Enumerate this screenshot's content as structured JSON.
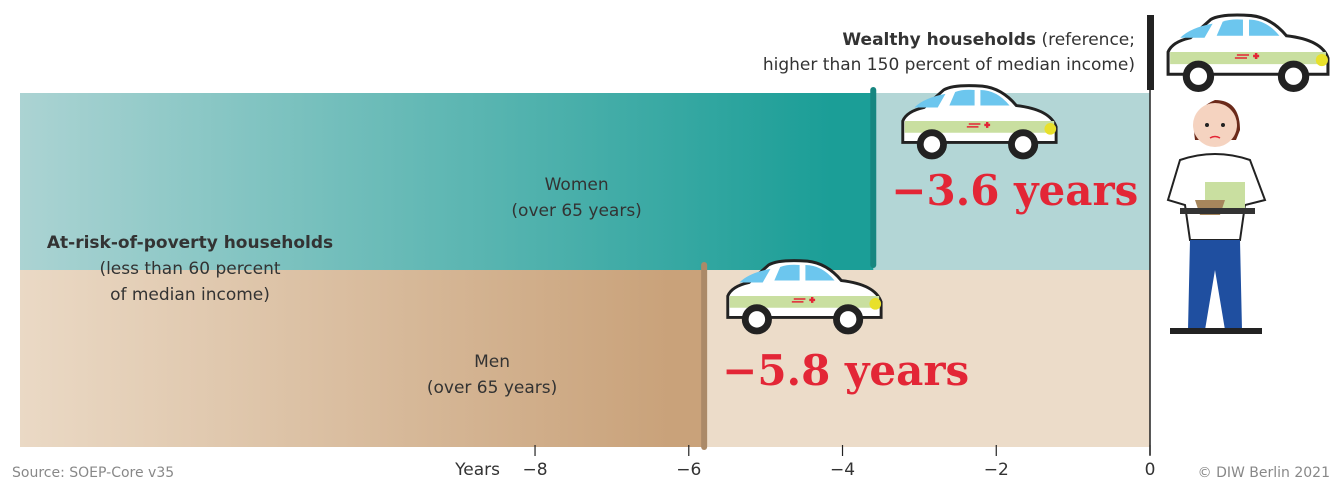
{
  "chart_data": {
    "type": "bar",
    "reference_label": {
      "title": "Wealthy households",
      "note": [
        "(reference;",
        "higher than 150 percent of median income)"
      ]
    },
    "group_label": {
      "title": "At-risk-of-poverty households",
      "note": [
        "(less than 60 percent",
        "of median income)"
      ]
    },
    "categories": [
      "Women",
      "Men"
    ],
    "category_notes": [
      "(over 65 years)",
      "(over 65 years)"
    ],
    "values": [
      -3.6,
      -5.8
    ],
    "value_labels": [
      "−3.6 years",
      "−5.8 years"
    ],
    "colors": [
      "#1b9e97",
      "#c9a27a"
    ],
    "band_colors": [
      "#b3d6d6",
      "#ecdcc9"
    ],
    "label_color": "#e32636",
    "xlabel": "Years",
    "xlim": [
      -14.7,
      0
    ],
    "xticks": [
      {
        "value": -8,
        "label": "−8"
      },
      {
        "value": -6,
        "label": "−6"
      },
      {
        "value": -4,
        "label": "−4"
      },
      {
        "value": -2,
        "label": "−2"
      },
      0
    ],
    "source": "Source: SOEP-Core v35",
    "credit": "© DIW Berlin 2021"
  }
}
